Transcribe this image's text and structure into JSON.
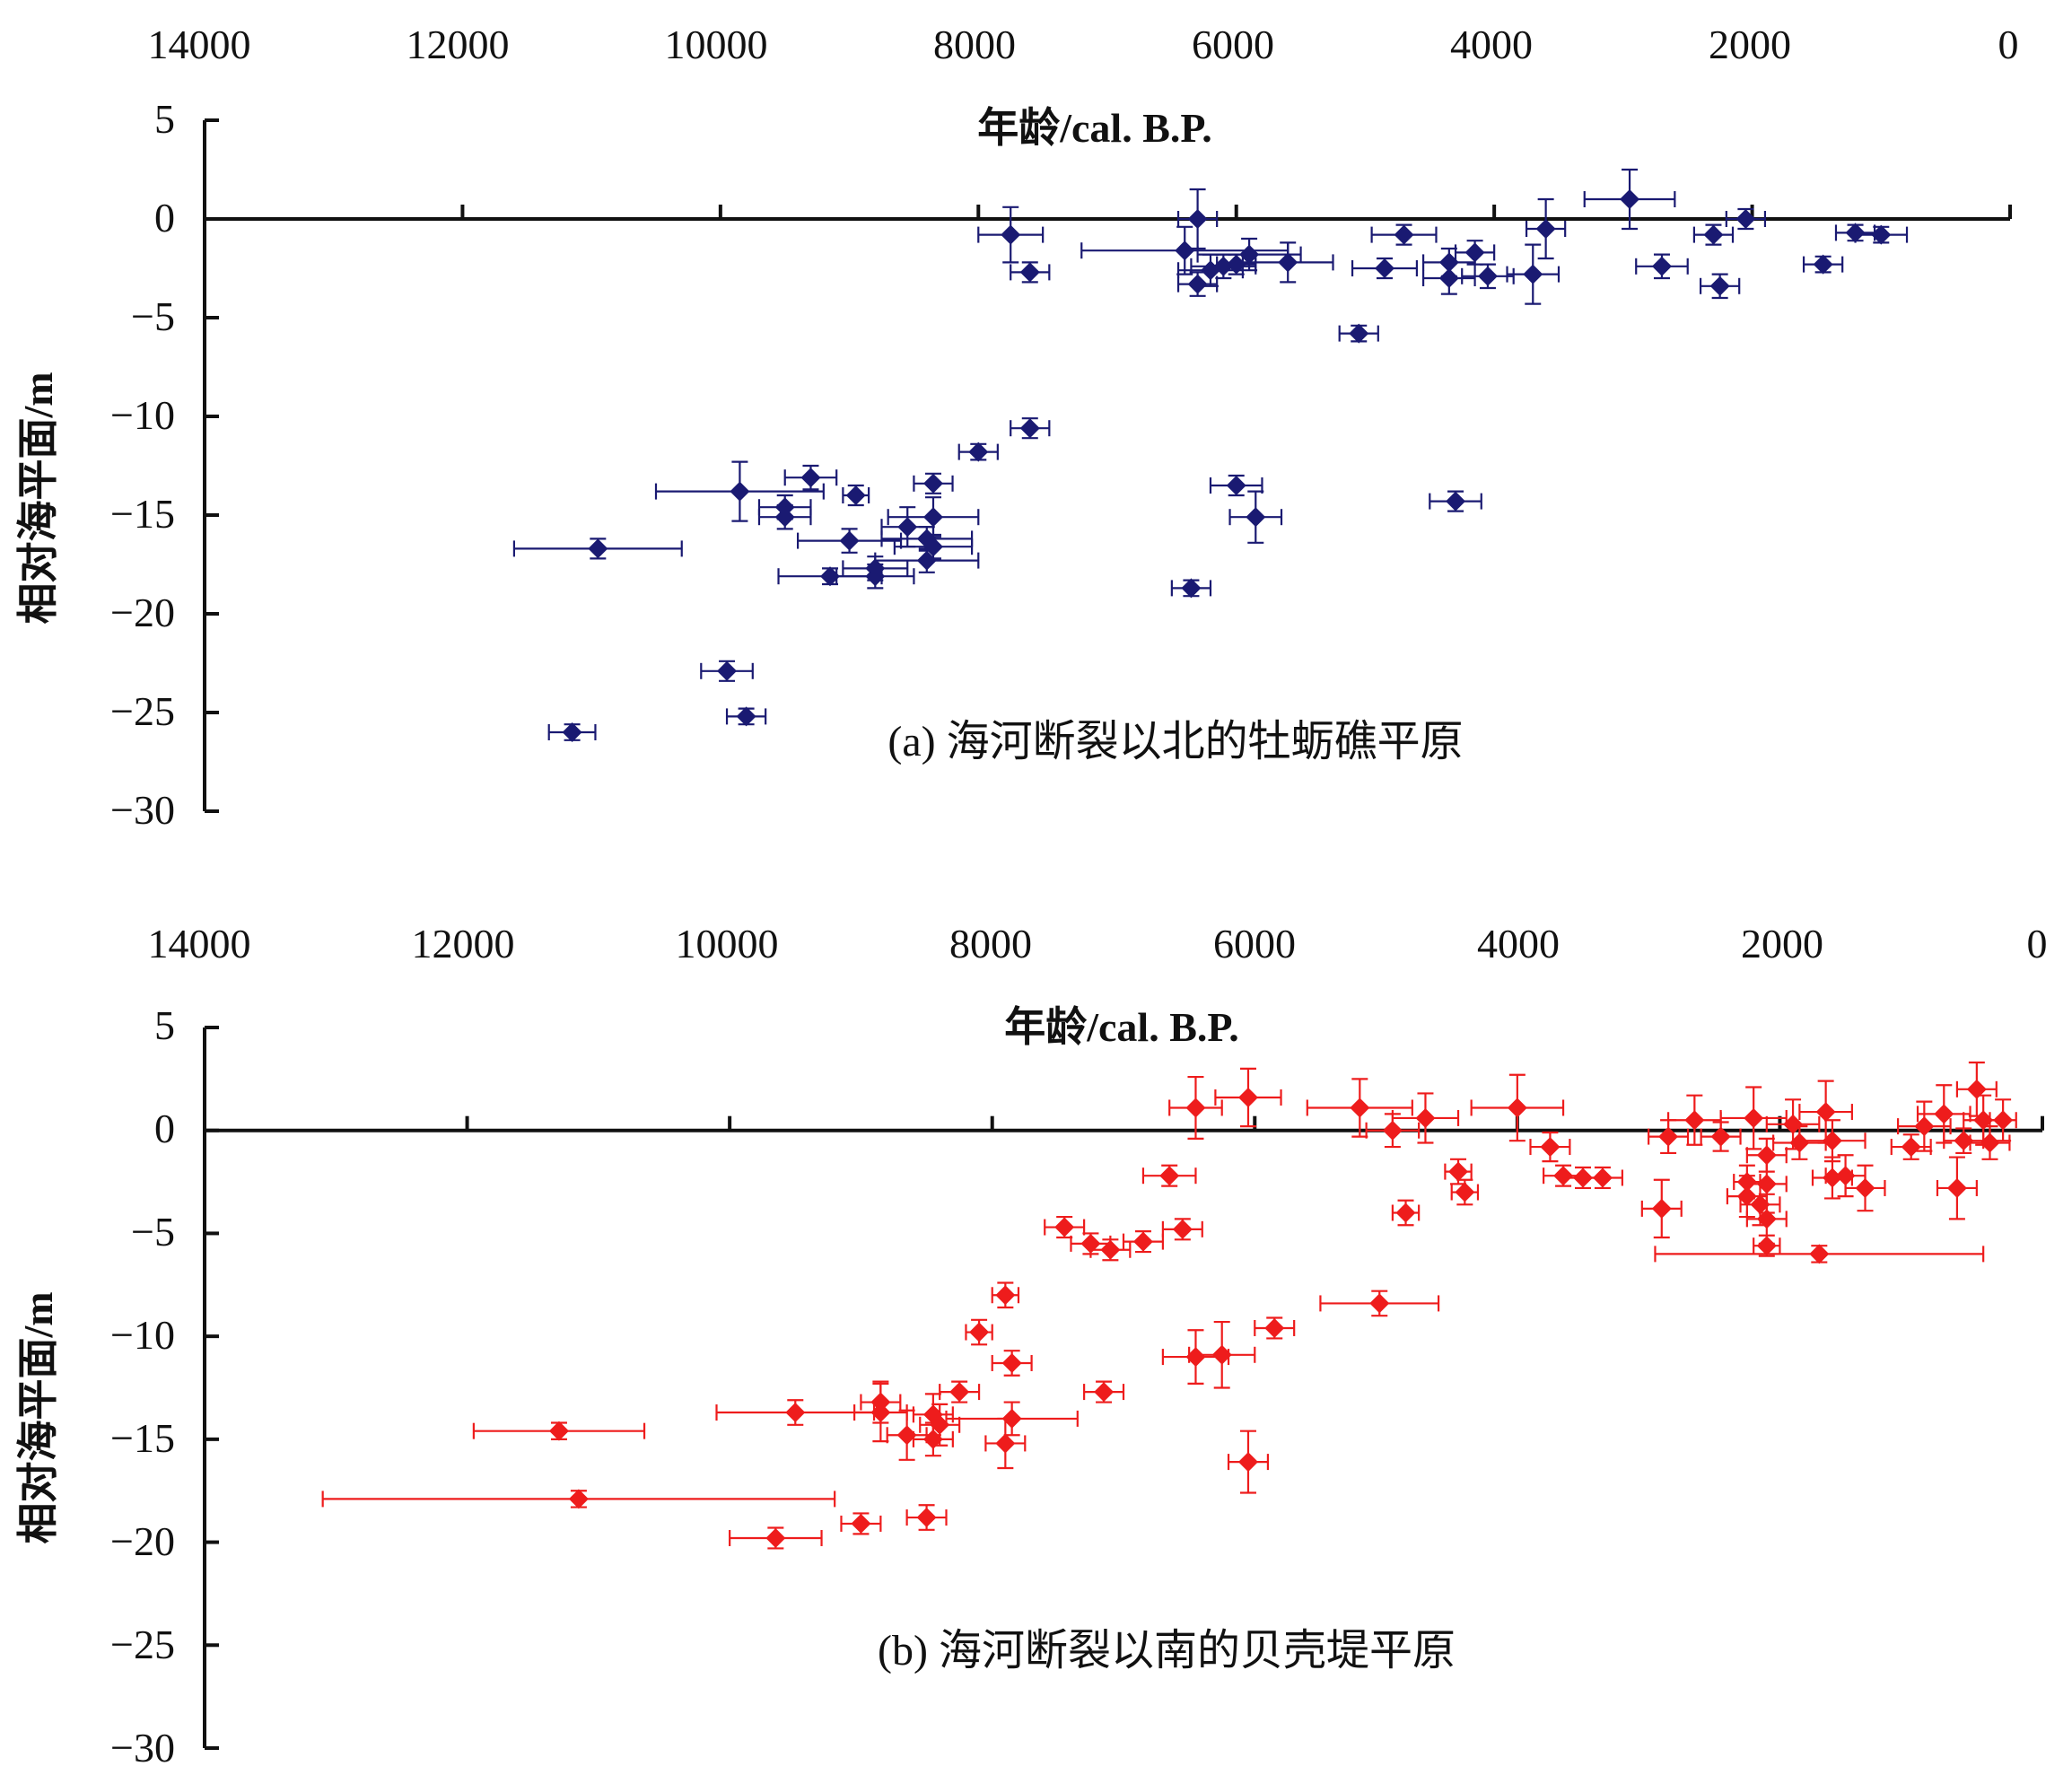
{
  "chart_data": [
    {
      "type": "scatter",
      "subtitle": "(a) 海河断裂以北的牡蛎礁平原",
      "xlabel": "年龄/cal. B.P.",
      "ylabel": "相对海平面/m",
      "xlim": [
        14000,
        0
      ],
      "ylim": [
        -30,
        5
      ],
      "x_ticks": [
        "14000",
        "12000",
        "10000",
        "8000",
        "6000",
        "4000",
        "2000",
        "0"
      ],
      "y_ticks": [
        "5",
        "0",
        "−5",
        "−10",
        "−15",
        "−20",
        "−25",
        "−30"
      ],
      "color": "#1a1a72",
      "marker": "diamond",
      "points": [
        {
          "x": 7750,
          "y": -0.8,
          "xerr": 250,
          "yerr": 1.4
        },
        {
          "x": 7600,
          "y": -2.7,
          "xerr": 150,
          "yerr": 0.5
        },
        {
          "x": 6300,
          "y": 0.0,
          "xerr": 150,
          "yerr": 1.5
        },
        {
          "x": 6400,
          "y": -1.6,
          "xerr": 800,
          "yerr": 1.2
        },
        {
          "x": 6300,
          "y": -3.3,
          "xerr": 150,
          "yerr": 0.6
        },
        {
          "x": 6200,
          "y": -2.6,
          "xerr": 250,
          "yerr": 0.8
        },
        {
          "x": 6100,
          "y": -2.4,
          "xerr": 250,
          "yerr": 0.6
        },
        {
          "x": 6000,
          "y": -2.3,
          "xerr": 150,
          "yerr": 0.5
        },
        {
          "x": 5900,
          "y": -1.8,
          "xerr": 400,
          "yerr": 0.8
        },
        {
          "x": 5600,
          "y": -2.2,
          "xerr": 350,
          "yerr": 1.0
        },
        {
          "x": 4700,
          "y": -0.8,
          "xerr": 250,
          "yerr": 0.5
        },
        {
          "x": 4850,
          "y": -2.5,
          "xerr": 250,
          "yerr": 0.5
        },
        {
          "x": 4350,
          "y": -2.2,
          "xerr": 200,
          "yerr": 0.7
        },
        {
          "x": 4350,
          "y": -3.0,
          "xerr": 200,
          "yerr": 0.8
        },
        {
          "x": 4150,
          "y": -1.7,
          "xerr": 150,
          "yerr": 0.6
        },
        {
          "x": 4050,
          "y": -2.9,
          "xerr": 200,
          "yerr": 0.6
        },
        {
          "x": 3700,
          "y": -2.8,
          "xerr": 200,
          "yerr": 1.5
        },
        {
          "x": 3600,
          "y": -0.5,
          "xerr": 150,
          "yerr": 1.5
        },
        {
          "x": 2950,
          "y": 1.0,
          "xerr": 350,
          "yerr": 1.5
        },
        {
          "x": 2700,
          "y": -2.4,
          "xerr": 200,
          "yerr": 0.6
        },
        {
          "x": 2300,
          "y": -0.8,
          "xerr": 150,
          "yerr": 0.5
        },
        {
          "x": 2050,
          "y": 0.0,
          "xerr": 150,
          "yerr": 0.5
        },
        {
          "x": 2250,
          "y": -3.4,
          "xerr": 150,
          "yerr": 0.6
        },
        {
          "x": 1450,
          "y": -2.3,
          "xerr": 150,
          "yerr": 0.4
        },
        {
          "x": 1200,
          "y": -0.7,
          "xerr": 150,
          "yerr": 0.4
        },
        {
          "x": 1000,
          "y": -0.8,
          "xerr": 200,
          "yerr": 0.4
        },
        {
          "x": 5050,
          "y": -5.8,
          "xerr": 150,
          "yerr": 0.4
        },
        {
          "x": 7600,
          "y": -10.6,
          "xerr": 150,
          "yerr": 0.5
        },
        {
          "x": 8000,
          "y": -11.8,
          "xerr": 150,
          "yerr": 0.4
        },
        {
          "x": 9300,
          "y": -13.1,
          "xerr": 200,
          "yerr": 0.6
        },
        {
          "x": 9850,
          "y": -13.8,
          "xerr": 650,
          "yerr": 1.5
        },
        {
          "x": 9500,
          "y": -14.6,
          "xerr": 200,
          "yerr": 0.6
        },
        {
          "x": 9500,
          "y": -15.1,
          "xerr": 200,
          "yerr": 0.6
        },
        {
          "x": 8950,
          "y": -14.0,
          "xerr": 100,
          "yerr": 0.5
        },
        {
          "x": 8350,
          "y": -13.4,
          "xerr": 150,
          "yerr": 0.5
        },
        {
          "x": 8550,
          "y": -15.6,
          "xerr": 200,
          "yerr": 1.0
        },
        {
          "x": 8350,
          "y": -15.1,
          "xerr": 350,
          "yerr": 1.0
        },
        {
          "x": 9000,
          "y": -16.3,
          "xerr": 400,
          "yerr": 0.6
        },
        {
          "x": 8400,
          "y": -16.2,
          "xerr": 350,
          "yerr": 0.6
        },
        {
          "x": 8350,
          "y": -16.6,
          "xerr": 300,
          "yerr": 0.6
        },
        {
          "x": 8400,
          "y": -17.3,
          "xerr": 400,
          "yerr": 0.6
        },
        {
          "x": 8800,
          "y": -17.7,
          "xerr": 250,
          "yerr": 0.6
        },
        {
          "x": 8800,
          "y": -18.1,
          "xerr": 300,
          "yerr": 0.6
        },
        {
          "x": 9150,
          "y": -18.1,
          "xerr": 400,
          "yerr": 0.4
        },
        {
          "x": 10950,
          "y": -16.7,
          "xerr": 650,
          "yerr": 0.5
        },
        {
          "x": 9950,
          "y": -22.9,
          "xerr": 200,
          "yerr": 0.5
        },
        {
          "x": 9800,
          "y": -25.2,
          "xerr": 150,
          "yerr": 0.4
        },
        {
          "x": 11150,
          "y": -26.0,
          "xerr": 180,
          "yerr": 0.4
        },
        {
          "x": 6000,
          "y": -13.5,
          "xerr": 200,
          "yerr": 0.5
        },
        {
          "x": 5850,
          "y": -15.1,
          "xerr": 200,
          "yerr": 1.3
        },
        {
          "x": 6350,
          "y": -18.7,
          "xerr": 150,
          "yerr": 0.4
        },
        {
          "x": 4300,
          "y": -14.3,
          "xerr": 200,
          "yerr": 0.5
        }
      ]
    },
    {
      "type": "scatter",
      "subtitle": "(b) 海河断裂以南的贝壳堤平原",
      "xlabel": "年龄/cal. B.P.",
      "ylabel": "相对海平面/m",
      "xlim": [
        14000,
        0
      ],
      "ylim": [
        -30,
        5
      ],
      "x_ticks": [
        "14000",
        "12000",
        "10000",
        "8000",
        "6000",
        "4000",
        "2000",
        "0"
      ],
      "y_ticks": [
        "5",
        "0",
        "−5",
        "−10",
        "−15",
        "−20",
        "−25",
        "−30"
      ],
      "color": "#ee1c1c",
      "marker": "diamond",
      "points": [
        {
          "x": 6450,
          "y": 1.1,
          "xerr": 200,
          "yerr": 1.5
        },
        {
          "x": 6050,
          "y": 1.6,
          "xerr": 250,
          "yerr": 1.4
        },
        {
          "x": 5200,
          "y": 1.1,
          "xerr": 400,
          "yerr": 1.4
        },
        {
          "x": 4950,
          "y": 0.0,
          "xerr": 200,
          "yerr": 0.8
        },
        {
          "x": 4700,
          "y": 0.6,
          "xerr": 250,
          "yerr": 1.2
        },
        {
          "x": 4000,
          "y": 1.1,
          "xerr": 350,
          "yerr": 1.6
        },
        {
          "x": 3750,
          "y": -0.8,
          "xerr": 150,
          "yerr": 0.7
        },
        {
          "x": 3650,
          "y": -2.2,
          "xerr": 150,
          "yerr": 0.5
        },
        {
          "x": 3500,
          "y": -2.3,
          "xerr": 150,
          "yerr": 0.5
        },
        {
          "x": 3350,
          "y": -2.3,
          "xerr": 150,
          "yerr": 0.5
        },
        {
          "x": 4450,
          "y": -2.0,
          "xerr": 100,
          "yerr": 0.6
        },
        {
          "x": 4400,
          "y": -3.0,
          "xerr": 100,
          "yerr": 0.6
        },
        {
          "x": 4850,
          "y": -4.0,
          "xerr": 100,
          "yerr": 0.6
        },
        {
          "x": 6650,
          "y": -2.2,
          "xerr": 200,
          "yerr": 0.5
        },
        {
          "x": 7450,
          "y": -4.7,
          "xerr": 150,
          "yerr": 0.5
        },
        {
          "x": 7250,
          "y": -5.5,
          "xerr": 150,
          "yerr": 0.5
        },
        {
          "x": 7100,
          "y": -5.8,
          "xerr": 150,
          "yerr": 0.5
        },
        {
          "x": 6850,
          "y": -5.4,
          "xerr": 150,
          "yerr": 0.5
        },
        {
          "x": 6550,
          "y": -4.8,
          "xerr": 150,
          "yerr": 0.5
        },
        {
          "x": 7900,
          "y": -8.0,
          "xerr": 100,
          "yerr": 0.6
        },
        {
          "x": 8100,
          "y": -9.8,
          "xerr": 100,
          "yerr": 0.6
        },
        {
          "x": 7850,
          "y": -11.3,
          "xerr": 150,
          "yerr": 0.6
        },
        {
          "x": 8250,
          "y": -12.7,
          "xerr": 150,
          "yerr": 0.5
        },
        {
          "x": 7150,
          "y": -12.7,
          "xerr": 150,
          "yerr": 0.5
        },
        {
          "x": 6450,
          "y": -11.0,
          "xerr": 250,
          "yerr": 1.3
        },
        {
          "x": 6250,
          "y": -10.9,
          "xerr": 250,
          "yerr": 1.6
        },
        {
          "x": 5850,
          "y": -9.6,
          "xerr": 150,
          "yerr": 0.5
        },
        {
          "x": 5050,
          "y": -8.4,
          "xerr": 450,
          "yerr": 0.6
        },
        {
          "x": 6050,
          "y": -16.1,
          "xerr": 150,
          "yerr": 1.5
        },
        {
          "x": 9500,
          "y": -13.7,
          "xerr": 600,
          "yerr": 0.6
        },
        {
          "x": 8850,
          "y": -13.2,
          "xerr": 150,
          "yerr": 1.0
        },
        {
          "x": 8850,
          "y": -13.7,
          "xerr": 200,
          "yerr": 1.4
        },
        {
          "x": 8650,
          "y": -14.8,
          "xerr": 150,
          "yerr": 1.2
        },
        {
          "x": 8450,
          "y": -13.8,
          "xerr": 150,
          "yerr": 1.0
        },
        {
          "x": 8400,
          "y": -14.3,
          "xerr": 150,
          "yerr": 1.0
        },
        {
          "x": 8450,
          "y": -15.0,
          "xerr": 150,
          "yerr": 0.8
        },
        {
          "x": 7850,
          "y": -14.0,
          "xerr": 500,
          "yerr": 0.8
        },
        {
          "x": 7900,
          "y": -15.2,
          "xerr": 150,
          "yerr": 1.2
        },
        {
          "x": 11300,
          "y": -14.6,
          "xerr": 650,
          "yerr": 0.4
        },
        {
          "x": 11150,
          "y": -17.9,
          "xerr": 1950,
          "yerr": 0.4
        },
        {
          "x": 9650,
          "y": -19.8,
          "xerr": 350,
          "yerr": 0.5
        },
        {
          "x": 9000,
          "y": -19.1,
          "xerr": 150,
          "yerr": 0.5
        },
        {
          "x": 8500,
          "y": -18.8,
          "xerr": 150,
          "yerr": 0.6
        },
        {
          "x": 2850,
          "y": -0.3,
          "xerr": 150,
          "yerr": 0.8
        },
        {
          "x": 2650,
          "y": 0.5,
          "xerr": 200,
          "yerr": 1.2
        },
        {
          "x": 2450,
          "y": -0.3,
          "xerr": 150,
          "yerr": 0.7
        },
        {
          "x": 2200,
          "y": 0.6,
          "xerr": 250,
          "yerr": 1.5
        },
        {
          "x": 1900,
          "y": 0.3,
          "xerr": 200,
          "yerr": 1.2
        },
        {
          "x": 1650,
          "y": 0.9,
          "xerr": 200,
          "yerr": 1.5
        },
        {
          "x": 1850,
          "y": -0.6,
          "xerr": 200,
          "yerr": 0.8
        },
        {
          "x": 1600,
          "y": -0.5,
          "xerr": 250,
          "yerr": 1.0
        },
        {
          "x": 2100,
          "y": -1.2,
          "xerr": 150,
          "yerr": 0.8
        },
        {
          "x": 2250,
          "y": -2.5,
          "xerr": 100,
          "yerr": 0.8
        },
        {
          "x": 2100,
          "y": -2.6,
          "xerr": 150,
          "yerr": 1.4
        },
        {
          "x": 2250,
          "y": -3.2,
          "xerr": 150,
          "yerr": 1.0
        },
        {
          "x": 2150,
          "y": -3.6,
          "xerr": 150,
          "yerr": 1.0
        },
        {
          "x": 2100,
          "y": -4.3,
          "xerr": 150,
          "yerr": 1.2
        },
        {
          "x": 2100,
          "y": -5.6,
          "xerr": 100,
          "yerr": 0.5
        },
        {
          "x": 2900,
          "y": -3.8,
          "xerr": 150,
          "yerr": 1.4
        },
        {
          "x": 1600,
          "y": -2.3,
          "xerr": 150,
          "yerr": 1.0
        },
        {
          "x": 1500,
          "y": -2.2,
          "xerr": 150,
          "yerr": 1.0
        },
        {
          "x": 1350,
          "y": -2.8,
          "xerr": 150,
          "yerr": 1.1
        },
        {
          "x": 1700,
          "y": -6.0,
          "xerr": 1250,
          "yerr": 0.4
        },
        {
          "x": 1000,
          "y": -0.8,
          "xerr": 150,
          "yerr": 0.6
        },
        {
          "x": 900,
          "y": 0.2,
          "xerr": 200,
          "yerr": 1.2
        },
        {
          "x": 750,
          "y": 0.8,
          "xerr": 200,
          "yerr": 1.4
        },
        {
          "x": 500,
          "y": 2.0,
          "xerr": 150,
          "yerr": 1.3
        },
        {
          "x": 450,
          "y": 0.5,
          "xerr": 150,
          "yerr": 1.2
        },
        {
          "x": 600,
          "y": -0.5,
          "xerr": 150,
          "yerr": 0.6
        },
        {
          "x": 400,
          "y": -0.6,
          "xerr": 150,
          "yerr": 0.8
        },
        {
          "x": 650,
          "y": -2.8,
          "xerr": 150,
          "yerr": 1.5
        },
        {
          "x": 300,
          "y": 0.5,
          "xerr": 100,
          "yerr": 1.0
        }
      ]
    }
  ]
}
